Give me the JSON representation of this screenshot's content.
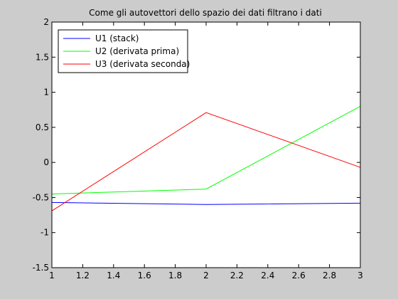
{
  "chart_data": {
    "type": "line",
    "title": "Come gli autovettori dello spazio dei dati filtrano i dati",
    "xlabel": "",
    "ylabel": "",
    "xlim": [
      1,
      3
    ],
    "ylim": [
      -1.5,
      2
    ],
    "xticks": [
      1,
      1.2,
      1.4,
      1.6,
      1.8,
      2,
      2.2,
      2.4,
      2.6,
      2.8,
      3
    ],
    "xtick_labels": [
      "1",
      "1.2",
      "1.4",
      "1.6",
      "1.8",
      "2",
      "2.2",
      "2.4",
      "2.6",
      "2.8",
      "3"
    ],
    "yticks": [
      -1.5,
      -1,
      -0.5,
      0,
      0.5,
      1,
      1.5,
      2
    ],
    "ytick_labels": [
      "-1.5",
      "-1",
      "-0.5",
      "0",
      "0.5",
      "1",
      "1.5",
      "2"
    ],
    "grid": false,
    "legend_position": "top-left",
    "x": [
      1,
      2,
      3
    ],
    "series": [
      {
        "name": "U1 (stack)",
        "color": "#0000ff",
        "values": [
          -0.57,
          -0.6,
          -0.58
        ]
      },
      {
        "name": "U2 (derivata prima)",
        "color": "#00ff00",
        "values": [
          -0.45,
          -0.38,
          0.8
        ]
      },
      {
        "name": "U3 (derivata seconda)",
        "color": "#ff0000",
        "values": [
          -0.69,
          0.71,
          -0.07
        ]
      }
    ]
  }
}
